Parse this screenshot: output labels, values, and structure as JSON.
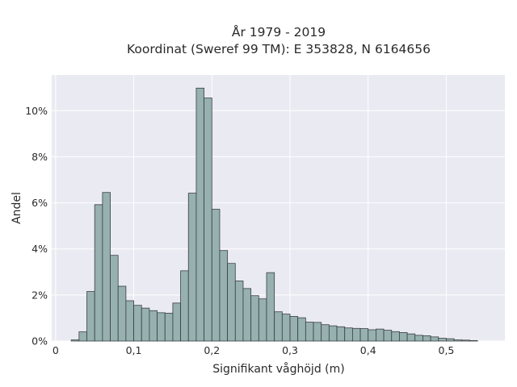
{
  "chart_data": {
    "type": "bar",
    "title_line1": "År 1979 - 2019",
    "title_line2": "Koordinat (Sweref 99 TM): E 353828, N 6164656",
    "xlabel": "Signifikant våghöjd (m)",
    "ylabel": "Andel",
    "xlim": [
      -0.005,
      0.575
    ],
    "ylim": [
      0,
      0.1155
    ],
    "x_ticks": [
      {
        "value": 0,
        "label": "0"
      },
      {
        "value": 0.1,
        "label": "0,1"
      },
      {
        "value": 0.2,
        "label": "0,2"
      },
      {
        "value": 0.3,
        "label": "0,3"
      },
      {
        "value": 0.4,
        "label": "0,4"
      },
      {
        "value": 0.5,
        "label": "0,5"
      }
    ],
    "y_ticks": [
      {
        "value": 0,
        "label": "0%"
      },
      {
        "value": 0.02,
        "label": "2%"
      },
      {
        "value": 0.04,
        "label": "4%"
      },
      {
        "value": 0.06,
        "label": "6%"
      },
      {
        "value": 0.08,
        "label": "8%"
      },
      {
        "value": 0.1,
        "label": "10%"
      }
    ],
    "bin_width": 0.01,
    "bin_starts": [
      0.02,
      0.03,
      0.04,
      0.05,
      0.06,
      0.07,
      0.08,
      0.09,
      0.1,
      0.11,
      0.12,
      0.13,
      0.14,
      0.15,
      0.16,
      0.17,
      0.18,
      0.19,
      0.2,
      0.21,
      0.22,
      0.23,
      0.24,
      0.25,
      0.26,
      0.27,
      0.28,
      0.29,
      0.3,
      0.31,
      0.32,
      0.33,
      0.34,
      0.35,
      0.36,
      0.37,
      0.38,
      0.39,
      0.4,
      0.41,
      0.42,
      0.43,
      0.44,
      0.45,
      0.46,
      0.47,
      0.48,
      0.49,
      0.5,
      0.51,
      0.52,
      0.53
    ],
    "values": [
      0.0005,
      0.004,
      0.0215,
      0.0592,
      0.0645,
      0.0372,
      0.0238,
      0.0175,
      0.0155,
      0.0143,
      0.0132,
      0.0123,
      0.0121,
      0.0165,
      0.0305,
      0.0642,
      0.1098,
      0.1055,
      0.0572,
      0.0393,
      0.0337,
      0.0261,
      0.0228,
      0.0197,
      0.0183,
      0.0297,
      0.0127,
      0.0117,
      0.0107,
      0.0101,
      0.0082,
      0.0081,
      0.0071,
      0.0066,
      0.0062,
      0.0057,
      0.0055,
      0.0054,
      0.0049,
      0.0052,
      0.0047,
      0.0041,
      0.0037,
      0.0031,
      0.0025,
      0.0023,
      0.0018,
      0.0012,
      0.001,
      0.0005,
      0.0004,
      0.0002
    ],
    "colors": {
      "bar_fill": "#97b0b0",
      "bar_edge": "#3a4040",
      "plot_bg": "#eaeaf2",
      "grid": "#ffffff"
    },
    "grid": true
  }
}
